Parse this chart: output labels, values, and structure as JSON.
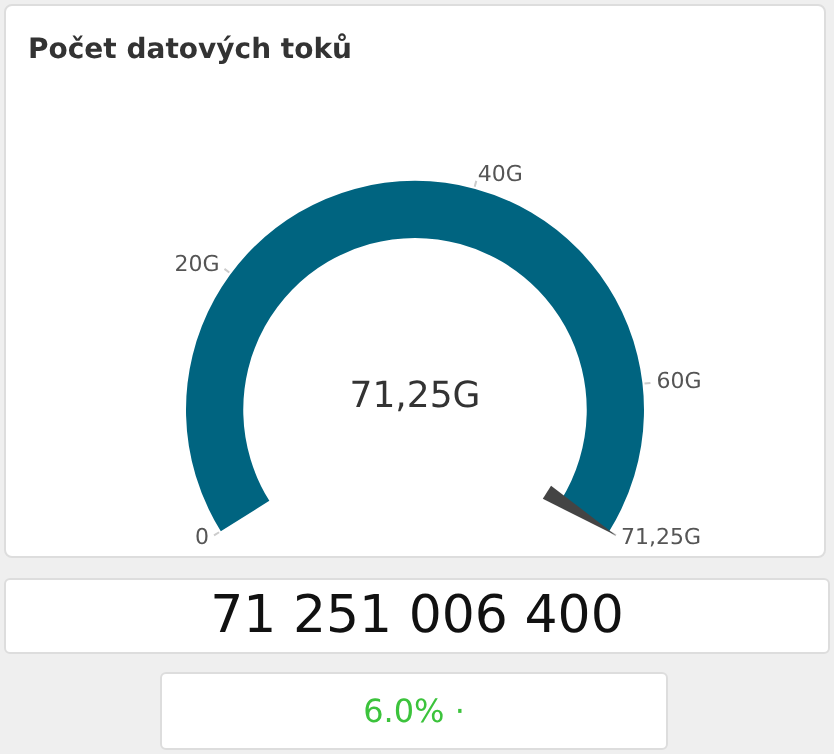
{
  "chart_data": {
    "type": "other",
    "title": "Počet datových toků",
    "values": [
      71.25
    ],
    "value_labels": [
      "71,25G"
    ],
    "colors": [
      "#006480"
    ],
    "annotations": [
      "0",
      "20G",
      "40G",
      "60G",
      "71,25G",
      "71 251 006 400",
      "6.0% ·"
    ]
  }
}
